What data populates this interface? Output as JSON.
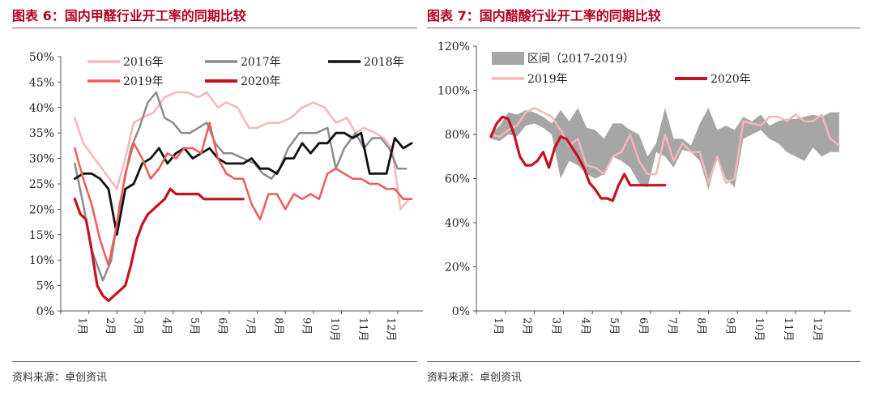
{
  "left": {
    "title": "图表 6：国内甲醛行业开工率的同期比较",
    "source": "资料来源：卓创资讯",
    "chart_data": {
      "type": "line",
      "x_categories": [
        "1月",
        "2月",
        "3月",
        "4月",
        "5月",
        "6月",
        "7月",
        "8月",
        "9月",
        "10月",
        "11月",
        "12月"
      ],
      "y_ticks": [
        "0%",
        "5%",
        "10%",
        "15%",
        "20%",
        "25%",
        "30%",
        "35%",
        "40%",
        "45%",
        "50%"
      ],
      "ylim": [
        0,
        50
      ],
      "series": [
        {
          "name": "2016年",
          "color": "#f7b6b9",
          "width": 2.5,
          "x": [
            0.5,
            0.8,
            1.2,
            1.6,
            2.0,
            2.3,
            2.6,
            2.9,
            3.3,
            3.7,
            4.1,
            4.5,
            4.9,
            5.2,
            5.6,
            5.9,
            6.3,
            6.7,
            7.0,
            7.4,
            7.8,
            8.2,
            8.6,
            9.0,
            9.4,
            9.8,
            10.2,
            10.5,
            10.8,
            11.2,
            11.5,
            11.8,
            12.1,
            12.4
          ],
          "y": [
            38,
            33,
            30,
            27,
            24,
            30,
            37,
            38,
            39,
            42,
            43,
            43,
            42,
            43,
            40,
            41,
            40,
            36,
            36,
            37,
            37,
            38,
            40,
            41,
            40,
            37,
            38,
            35,
            36,
            35,
            34,
            32,
            20,
            22
          ]
        },
        {
          "name": "2017年",
          "color": "#8c8c8c",
          "width": 2.5,
          "x": [
            0.5,
            0.8,
            1.1,
            1.5,
            1.8,
            2.1,
            2.5,
            2.8,
            3.1,
            3.4,
            3.7,
            4.0,
            4.3,
            4.6,
            4.9,
            5.2,
            5.5,
            5.8,
            6.1,
            6.5,
            6.9,
            7.2,
            7.5,
            7.8,
            8.1,
            8.5,
            8.8,
            9.1,
            9.5,
            9.8,
            10.1,
            10.5,
            10.8,
            11.1,
            11.4,
            11.7,
            12.0,
            12.3
          ],
          "y": [
            29,
            21,
            12,
            6,
            10,
            21,
            32,
            36,
            41,
            43,
            38,
            37,
            35,
            35,
            36,
            37,
            33,
            31,
            31,
            30,
            29,
            27,
            26,
            28,
            32,
            35,
            35,
            35,
            36,
            28,
            32,
            35,
            32,
            34,
            34,
            32,
            28,
            28
          ]
        },
        {
          "name": "2018年",
          "color": "#111111",
          "width": 2.8,
          "x": [
            0.5,
            0.8,
            1.1,
            1.4,
            1.7,
            2.0,
            2.3,
            2.6,
            2.9,
            3.2,
            3.5,
            3.8,
            4.1,
            4.4,
            4.7,
            5.0,
            5.3,
            5.6,
            5.9,
            6.2,
            6.5,
            6.8,
            7.1,
            7.4,
            7.7,
            8.0,
            8.3,
            8.6,
            8.9,
            9.2,
            9.5,
            9.8,
            10.1,
            10.4,
            10.7,
            11.0,
            11.3,
            11.6,
            11.9,
            12.2,
            12.5
          ],
          "y": [
            26,
            27,
            27,
            26,
            24,
            15,
            24,
            25,
            29,
            30,
            32,
            29,
            31,
            32,
            30,
            31,
            32,
            30,
            29,
            29,
            29,
            30,
            28,
            28,
            27,
            30,
            30,
            33,
            31,
            33,
            33,
            35,
            35,
            34,
            35,
            27,
            27,
            27,
            34,
            32,
            33
          ]
        },
        {
          "name": "2019年",
          "color": "#f05a5a",
          "width": 2.5,
          "x": [
            0.5,
            0.8,
            1.1,
            1.4,
            1.7,
            2.0,
            2.3,
            2.6,
            2.9,
            3.2,
            3.5,
            3.8,
            4.1,
            4.4,
            4.7,
            5.0,
            5.3,
            5.6,
            5.9,
            6.2,
            6.5,
            6.8,
            7.1,
            7.4,
            7.7,
            8.0,
            8.3,
            8.6,
            8.9,
            9.2,
            9.5,
            9.8,
            10.1,
            10.4,
            10.7,
            11.0,
            11.3,
            11.6,
            11.9,
            12.2,
            12.5
          ],
          "y": [
            32,
            26,
            21,
            14,
            9,
            17,
            27,
            33,
            30,
            26,
            28,
            31,
            30,
            32,
            32,
            31,
            37,
            30,
            27,
            26,
            26,
            21,
            18,
            23,
            23,
            20,
            23,
            22,
            23,
            22,
            27,
            28,
            27,
            26,
            26,
            25,
            25,
            24,
            24,
            22,
            22
          ]
        },
        {
          "name": "2020年",
          "color": "#c8101e",
          "width": 3.2,
          "x": [
            0.5,
            0.7,
            0.9,
            1.1,
            1.3,
            1.5,
            1.7,
            1.9,
            2.1,
            2.3,
            2.5,
            2.7,
            2.9,
            3.1,
            3.3,
            3.5,
            3.7,
            3.9,
            4.1,
            4.3,
            4.5,
            4.7,
            4.9,
            5.1,
            5.3,
            5.5,
            5.7,
            5.9,
            6.1,
            6.3,
            6.5
          ],
          "y": [
            22,
            19,
            18,
            12,
            5,
            3,
            2,
            3,
            4,
            5,
            9,
            14,
            17,
            19,
            20,
            21,
            22,
            24,
            23,
            23,
            23,
            23,
            23,
            22,
            22,
            22,
            22,
            22,
            22,
            22,
            22
          ]
        }
      ]
    }
  },
  "right": {
    "title": "图表 7：国内醋酸行业开工率的同期比较",
    "source": "资料来源：卓创资讯",
    "chart_data": {
      "type": "area",
      "x_categories": [
        "1月",
        "2月",
        "3月",
        "4月",
        "5月",
        "6月",
        "7月",
        "8月",
        "9月",
        "10月",
        "11月",
        "12月"
      ],
      "y_ticks": [
        "0%",
        "20%",
        "40%",
        "60%",
        "80%",
        "100%",
        "120%"
      ],
      "ylim": [
        0,
        120
      ],
      "band": {
        "name": "区间（2017-2019）",
        "color": "#a6a6a6",
        "x": [
          0.5,
          0.8,
          1.1,
          1.4,
          1.7,
          2.0,
          2.3,
          2.6,
          2.9,
          3.2,
          3.5,
          3.8,
          4.1,
          4.4,
          4.7,
          5.0,
          5.3,
          5.6,
          5.9,
          6.2,
          6.5,
          6.8,
          7.1,
          7.4,
          7.7,
          8.0,
          8.3,
          8.6,
          8.9,
          9.2,
          9.5,
          9.8,
          10.1,
          10.4,
          10.7,
          11.0,
          11.3,
          11.6,
          11.9,
          12.2,
          12.5
        ],
        "low": [
          78,
          77,
          80,
          79,
          84,
          85,
          83,
          80,
          60,
          68,
          66,
          62,
          60,
          62,
          70,
          68,
          65,
          58,
          56,
          72,
          70,
          65,
          73,
          72,
          68,
          55,
          70,
          60,
          56,
          78,
          80,
          82,
          78,
          76,
          72,
          70,
          68,
          74,
          70,
          72,
          72
        ],
        "high": [
          80,
          84,
          90,
          89,
          91,
          90,
          88,
          85,
          91,
          86,
          92,
          83,
          82,
          78,
          85,
          85,
          82,
          80,
          70,
          76,
          92,
          78,
          78,
          75,
          85,
          92,
          82,
          84,
          82,
          88,
          86,
          89,
          84,
          86,
          87,
          87,
          88,
          89,
          88,
          90,
          90
        ]
      },
      "series": [
        {
          "name": "2019年",
          "color": "#f7b6b9",
          "width": 2.5,
          "x": [
            0.5,
            0.8,
            1.1,
            1.4,
            1.7,
            2.0,
            2.3,
            2.6,
            2.9,
            3.2,
            3.5,
            3.8,
            4.1,
            4.4,
            4.7,
            5.0,
            5.3,
            5.6,
            5.9,
            6.2,
            6.5,
            6.8,
            7.1,
            7.4,
            7.7,
            8.0,
            8.3,
            8.6,
            8.9,
            9.2,
            9.5,
            9.8,
            10.1,
            10.4,
            10.7,
            11.0,
            11.3,
            11.6,
            11.9,
            12.2,
            12.5
          ],
          "y": [
            80,
            79,
            82,
            84,
            90,
            92,
            90,
            88,
            82,
            75,
            78,
            66,
            65,
            62,
            70,
            72,
            80,
            68,
            62,
            62,
            80,
            68,
            76,
            72,
            72,
            58,
            70,
            58,
            60,
            86,
            85,
            84,
            88,
            88,
            86,
            89,
            86,
            86,
            89,
            78,
            75
          ]
        },
        {
          "name": "2020年",
          "color": "#c8101e",
          "width": 3.2,
          "x": [
            0.5,
            0.7,
            0.9,
            1.1,
            1.3,
            1.5,
            1.7,
            1.9,
            2.1,
            2.3,
            2.5,
            2.7,
            2.9,
            3.1,
            3.3,
            3.5,
            3.7,
            3.9,
            4.1,
            4.3,
            4.5,
            4.7,
            4.9,
            5.1,
            5.3,
            5.5,
            5.7,
            5.9,
            6.1,
            6.3,
            6.5
          ],
          "y": [
            79,
            85,
            88,
            87,
            80,
            70,
            66,
            66,
            68,
            72,
            65,
            74,
            79,
            78,
            74,
            70,
            65,
            58,
            55,
            51,
            51,
            50,
            57,
            62,
            57,
            57,
            57,
            57,
            57,
            57,
            57
          ]
        }
      ]
    }
  }
}
